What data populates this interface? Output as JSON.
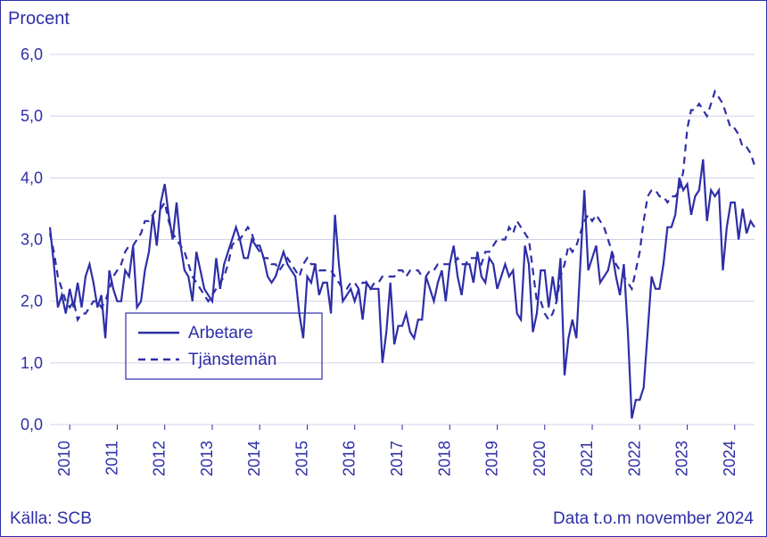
{
  "chart": {
    "type": "line",
    "y_axis_title": "Procent",
    "y_axis_title_fontsize": 20,
    "ylim": [
      0,
      6
    ],
    "ytick_step": 1,
    "ytick_labels": [
      "0,0",
      "1,0",
      "2,0",
      "3,0",
      "4,0",
      "5,0",
      "6,0"
    ],
    "ytick_fontsize": 18,
    "x_categories": [
      "2010",
      "2011",
      "2012",
      "2013",
      "2014",
      "2015",
      "2016",
      "2017",
      "2018",
      "2019",
      "2020",
      "2021",
      "2022",
      "2023",
      "2024"
    ],
    "xtick_fontsize": 18,
    "background_color": "#ffffff",
    "grid_color": "#d0d0e8",
    "line_color": "#2e2ea8",
    "text_color": "#2e2ea8",
    "footer_left": "Källa: SCB",
    "footer_right": "Data t.o.m november 2024",
    "footer_fontsize": 19,
    "legend": {
      "items": [
        "Arbetare",
        "Tjänstemän"
      ],
      "fontsize": 19,
      "box_stroke": "#2e2ea8"
    },
    "series": [
      {
        "name": "Arbetare",
        "style": "solid",
        "width": 2.2,
        "color": "#2e2ea8",
        "data": [
          3.2,
          2.6,
          1.9,
          2.1,
          1.8,
          2.2,
          1.9,
          2.3,
          1.9,
          2.4,
          2.6,
          2.3,
          1.9,
          2.1,
          1.4,
          2.5,
          2.2,
          2.0,
          2.0,
          2.5,
          2.4,
          2.9,
          1.9,
          2.0,
          2.5,
          2.8,
          3.4,
          2.9,
          3.6,
          3.9,
          3.4,
          3.0,
          3.6,
          2.9,
          2.5,
          2.4,
          2.0,
          2.8,
          2.5,
          2.2,
          2.1,
          2.0,
          2.7,
          2.2,
          2.6,
          2.8,
          3.0,
          3.2,
          3.0,
          2.7,
          2.7,
          3.0,
          2.9,
          2.9,
          2.7,
          2.4,
          2.3,
          2.4,
          2.6,
          2.8,
          2.6,
          2.5,
          2.4,
          1.8,
          1.4,
          2.4,
          2.3,
          2.6,
          2.1,
          2.3,
          2.3,
          1.8,
          3.4,
          2.6,
          2.0,
          2.1,
          2.2,
          2.0,
          2.2,
          1.7,
          2.3,
          2.2,
          2.2,
          2.2,
          1.0,
          1.5,
          2.3,
          1.3,
          1.6,
          1.6,
          1.8,
          1.5,
          1.4,
          1.7,
          1.7,
          2.4,
          2.2,
          2.0,
          2.3,
          2.5,
          2.0,
          2.6,
          2.9,
          2.4,
          2.1,
          2.6,
          2.6,
          2.3,
          2.8,
          2.4,
          2.3,
          2.7,
          2.6,
          2.2,
          2.4,
          2.6,
          2.4,
          2.5,
          1.8,
          1.7,
          2.9,
          2.6,
          1.5,
          1.8,
          2.5,
          2.5,
          1.9,
          2.4,
          2.0,
          2.7,
          0.8,
          1.4,
          1.7,
          1.4,
          2.6,
          3.8,
          2.5,
          2.7,
          2.9,
          2.3,
          2.4,
          2.5,
          2.8,
          2.4,
          2.1,
          2.6,
          1.5,
          0.1,
          0.4,
          0.4,
          0.6,
          1.5,
          2.4,
          2.2,
          2.2,
          2.6,
          3.2,
          3.2,
          3.4,
          4.0,
          3.8,
          3.9,
          3.4,
          3.7,
          3.8,
          4.3,
          3.3,
          3.8,
          3.7,
          3.8,
          2.5,
          3.2,
          3.6,
          3.6,
          3.0,
          3.5,
          3.1,
          3.3,
          3.2
        ]
      },
      {
        "name": "Tjänstemän",
        "style": "dashed",
        "width": 2.2,
        "color": "#2e2ea8",
        "data": [
          3.1,
          2.8,
          2.4,
          2.2,
          2.0,
          1.9,
          2.0,
          1.7,
          1.8,
          1.8,
          1.9,
          2.0,
          2.0,
          1.9,
          2.0,
          2.2,
          2.4,
          2.5,
          2.6,
          2.8,
          2.9,
          2.9,
          3.0,
          3.1,
          3.3,
          3.3,
          3.4,
          3.5,
          3.5,
          3.6,
          3.3,
          3.1,
          3.0,
          2.9,
          2.8,
          2.6,
          2.4,
          2.3,
          2.2,
          2.1,
          2.0,
          2.1,
          2.2,
          2.3,
          2.4,
          2.6,
          2.9,
          3.0,
          3.0,
          3.1,
          3.2,
          3.1,
          2.9,
          2.8,
          2.7,
          2.7,
          2.6,
          2.6,
          2.5,
          2.6,
          2.7,
          2.6,
          2.5,
          2.4,
          2.6,
          2.7,
          2.6,
          2.6,
          2.5,
          2.5,
          2.5,
          2.5,
          2.4,
          2.3,
          2.2,
          2.2,
          2.3,
          2.3,
          2.2,
          2.3,
          2.3,
          2.2,
          2.3,
          2.3,
          2.4,
          2.4,
          2.4,
          2.4,
          2.5,
          2.5,
          2.4,
          2.5,
          2.5,
          2.5,
          2.4,
          2.4,
          2.5,
          2.5,
          2.6,
          2.6,
          2.6,
          2.6,
          2.6,
          2.7,
          2.6,
          2.6,
          2.7,
          2.7,
          2.7,
          2.6,
          2.8,
          2.8,
          2.9,
          3.0,
          3.0,
          3.0,
          3.2,
          3.1,
          3.3,
          3.2,
          3.1,
          3.0,
          2.5,
          2.0,
          2.0,
          1.8,
          1.7,
          1.8,
          2.0,
          2.4,
          2.6,
          2.9,
          2.8,
          2.9,
          3.1,
          3.3,
          3.4,
          3.3,
          3.4,
          3.3,
          3.2,
          3.0,
          2.8,
          2.6,
          2.5,
          2.4,
          2.3,
          2.2,
          2.5,
          2.8,
          3.3,
          3.7,
          3.8,
          3.8,
          3.7,
          3.7,
          3.6,
          3.7,
          3.7,
          3.8,
          4.1,
          4.8,
          5.1,
          5.1,
          5.2,
          5.1,
          5.0,
          5.2,
          5.4,
          5.3,
          5.2,
          5.0,
          4.8,
          4.8,
          4.7,
          4.5,
          4.5,
          4.4,
          4.2
        ]
      }
    ]
  }
}
